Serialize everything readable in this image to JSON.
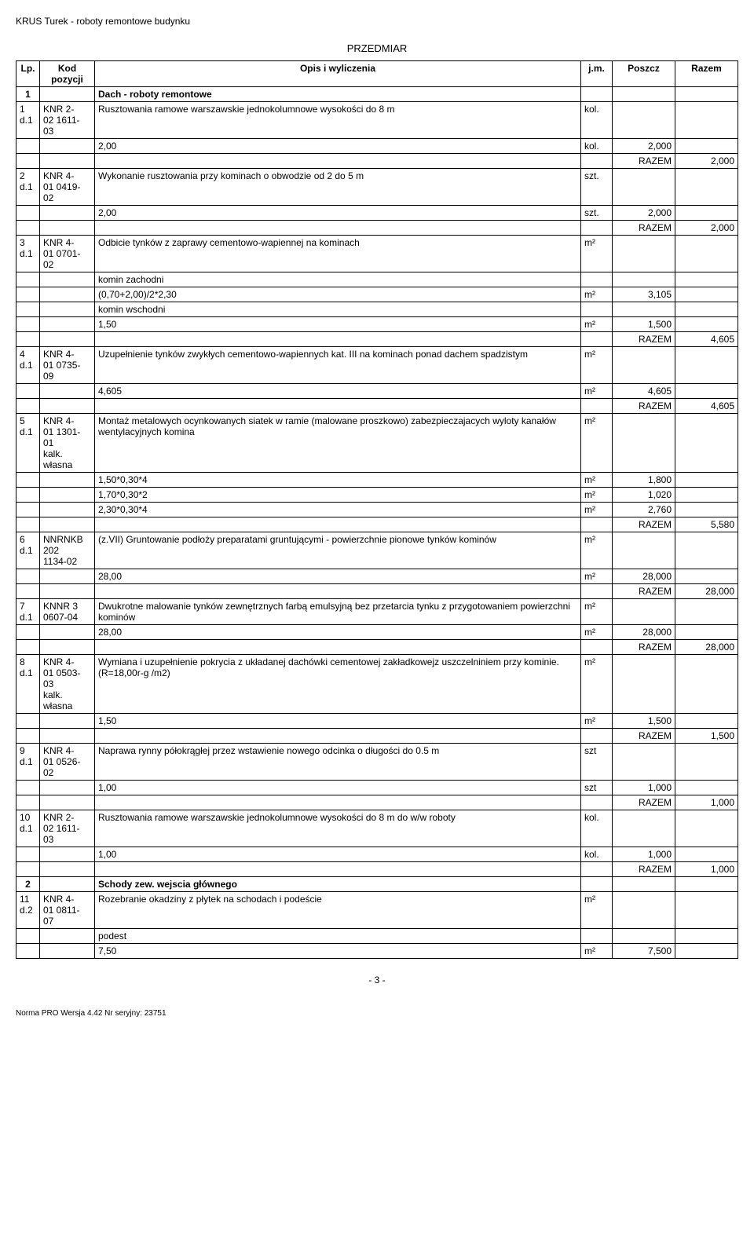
{
  "header": {
    "title": "KRUS Turek - roboty remontowe budynku",
    "sectionTitle": "PRZEDMIAR"
  },
  "columns": {
    "lp": "Lp.",
    "kod": "Kod pozycji",
    "opis": "Opis i wyliczenia",
    "jm": "j.m.",
    "poszcz": "Poszcz",
    "razem": "Razem"
  },
  "razemLabel": "RAZEM",
  "sections": [
    {
      "num": "1",
      "title": "Dach - roboty remontowe"
    },
    {
      "num": "2",
      "title": "Schody zew. wejscia głównego"
    }
  ],
  "rows": [
    {
      "lp": "1\nd.1",
      "kod": "KNR 2-\n02 1611-\n03",
      "opis": "Rusztowania ramowe warszawskie jednokolumnowe wysokości do 8 m",
      "jm": "kol.",
      "calcs": [
        {
          "expr": "2,00",
          "jm": "kol.",
          "val": "2,000"
        }
      ],
      "razem": "2,000"
    },
    {
      "lp": "2\nd.1",
      "kod": "KNR 4-\n01 0419-\n02",
      "opis": "Wykonanie rusztowania przy kominach o obwodzie od 2 do 5 m",
      "jm": "szt.",
      "calcs": [
        {
          "expr": "2,00",
          "jm": "szt.",
          "val": "2,000"
        }
      ],
      "razem": "2,000"
    },
    {
      "lp": "3\nd.1",
      "kod": "KNR 4-\n01 0701-\n02",
      "opis": "Odbicie tynków z zaprawy cementowo-wapiennej na kominach",
      "jm": "m²",
      "sublines": [
        "komin zachodni"
      ],
      "calcs": [
        {
          "expr": "(0,70+2,00)/2*2,30",
          "jm": "m²",
          "val": "3,105"
        }
      ],
      "sublines2": [
        "komin wschodni"
      ],
      "calcs2": [
        {
          "expr": "1,50",
          "jm": "m²",
          "val": "1,500"
        }
      ],
      "razem": "4,605"
    },
    {
      "lp": "4\nd.1",
      "kod": "KNR 4-\n01 0735-\n09",
      "opis": "Uzupełnienie tynków zwykłych cementowo-wapiennych kat. III na kominach ponad dachem spadzistym",
      "jm": "m²",
      "calcs": [
        {
          "expr": "4,605",
          "jm": "m²",
          "val": "4,605"
        }
      ],
      "razem": "4,605"
    },
    {
      "lp": "5\nd.1",
      "kod": "KNR 4-\n01 1301-\n01\nkalk.\nwłasna",
      "opis": "Montaż metalowych ocynkowanych siatek w ramie (malowane proszkowo) zabezpieczajacych wyloty kanałów wentylacyjnych komina",
      "jm": "m²",
      "calcs": [
        {
          "expr": "1,50*0,30*4",
          "jm": "m²",
          "val": "1,800"
        },
        {
          "expr": "1,70*0,30*2",
          "jm": "m²",
          "val": "1,020"
        },
        {
          "expr": "2,30*0,30*4",
          "jm": "m²",
          "val": "2,760"
        }
      ],
      "razem": "5,580"
    },
    {
      "lp": "6\nd.1",
      "kod": "NNRNKB\n202\n1134-02",
      "opis": "(z.VII) Gruntowanie podłoży preparatami gruntującymi  - powierzchnie pionowe tynków kominów",
      "jm": "m²",
      "calcs": [
        {
          "expr": "28,00",
          "jm": "m²",
          "val": "28,000"
        }
      ],
      "razem": "28,000"
    },
    {
      "lp": "7\nd.1",
      "kod": "KNNR 3\n0607-04",
      "opis": "Dwukrotne malowanie tynków zewnętrznych farbą emulsyjną bez przetarcia tynku z przygotowaniem powierzchni kominów",
      "jm": "m²",
      "calcs": [
        {
          "expr": "28,00",
          "jm": "m²",
          "val": "28,000"
        }
      ],
      "razem": "28,000"
    },
    {
      "lp": "8\nd.1",
      "kod": "KNR 4-\n01 0503-\n03\nkalk.\nwłasna",
      "opis": "Wymiana i uzupełnienie pokrycia z układanej dachówki cementowej zakładkowejz uszczelniniem przy kominie. (R=18,00r-g /m2)",
      "jm": "m²",
      "calcs": [
        {
          "expr": "1,50",
          "jm": "m²",
          "val": "1,500"
        }
      ],
      "razem": "1,500"
    },
    {
      "lp": "9\nd.1",
      "kod": "KNR 4-\n01 0526-\n02",
      "opis": "Naprawa rynny półokrągłej przez wstawienie nowego odcinka o długości do 0.5 m",
      "jm": "szt",
      "calcs": [
        {
          "expr": "1,00",
          "jm": "szt",
          "val": "1,000"
        }
      ],
      "razem": "1,000"
    },
    {
      "lp": "10\nd.1",
      "kod": "KNR 2-\n02 1611-\n03",
      "opis": "Rusztowania ramowe warszawskie jednokolumnowe wysokości do 8 m do w/w roboty",
      "jm": "kol.",
      "calcs": [
        {
          "expr": "1,00",
          "jm": "kol.",
          "val": "1,000"
        }
      ],
      "razem": "1,000"
    },
    {
      "lp": "11\nd.2",
      "kod": "KNR 4-\n01 0811-\n07",
      "opis": "Rozebranie okadziny z płytek na schodach i podeście",
      "jm": "m²",
      "sublines": [
        "podest"
      ],
      "calcs": [
        {
          "expr": "7,50",
          "jm": "m²",
          "val": "7,500"
        }
      ]
    }
  ],
  "pageNum": "- 3 -",
  "footer": "Norma PRO Wersja 4.42 Nr seryjny: 23751"
}
